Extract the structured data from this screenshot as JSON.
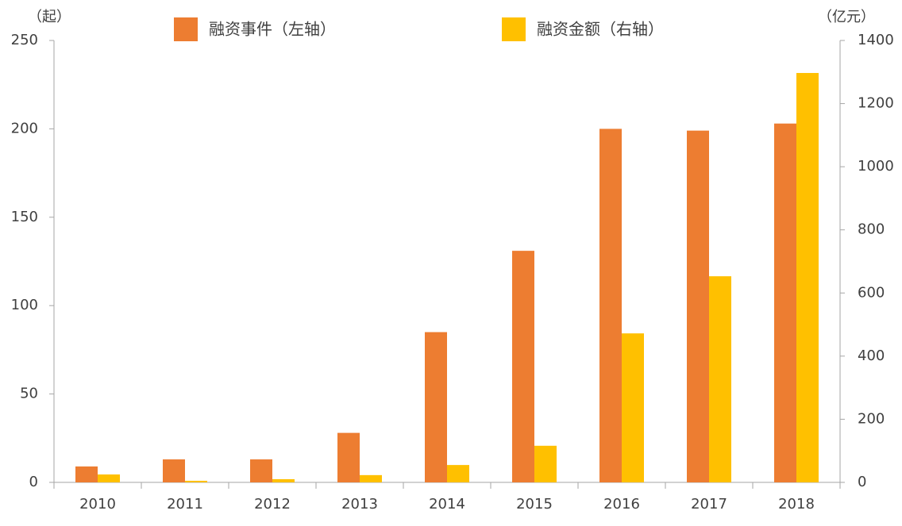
{
  "chart_data": {
    "type": "bar",
    "y_label": "（起）",
    "y2_label": "（亿元）",
    "categories": [
      "2010",
      "2011",
      "2012",
      "2013",
      "2014",
      "2015",
      "2016",
      "2017",
      "2018"
    ],
    "series": [
      {
        "name": "融资事件（左轴）",
        "color": "#ED7D31",
        "values": [
          9,
          13,
          13,
          28,
          85,
          131,
          200,
          199,
          203
        ]
      },
      {
        "name": "融资金额（右轴）",
        "color": "#FFC000",
        "axis": "y2",
        "values": [
          25,
          5,
          10,
          23,
          55,
          116,
          472,
          653,
          1297
        ]
      }
    ],
    "ylim": [
      0,
      250
    ],
    "yticks": [
      0,
      50,
      100,
      150,
      200,
      250
    ],
    "y2lim": [
      0,
      1400
    ],
    "y2ticks": [
      0,
      200,
      400,
      600,
      800,
      1000,
      1200,
      1400
    ],
    "grid": false
  }
}
